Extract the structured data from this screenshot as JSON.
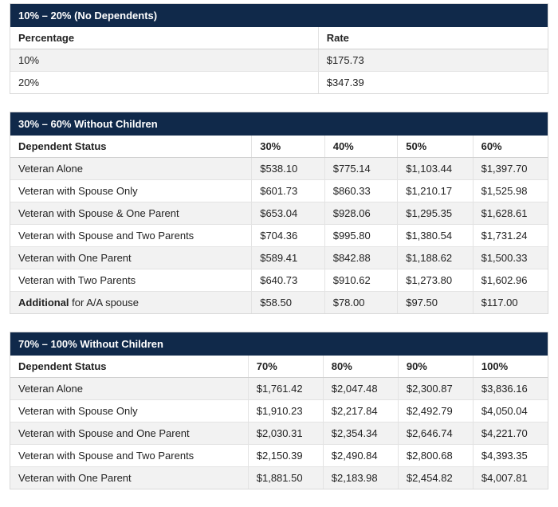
{
  "colors": {
    "header_bg": "#10294a",
    "header_text": "#ffffff",
    "row_alt_bg": "#f2f2f2",
    "border": "#d9d9d9"
  },
  "table1": {
    "title": "10% – 20% (No Dependents)",
    "columns": [
      "Percentage",
      "Rate"
    ],
    "rows": [
      [
        "10%",
        "$175.73"
      ],
      [
        "20%",
        "$347.39"
      ]
    ]
  },
  "table2": {
    "title": "30% – 60% Without Children",
    "columns": [
      "Dependent Status",
      "30%",
      "40%",
      "50%",
      "60%"
    ],
    "rows": [
      [
        "Veteran Alone",
        "$538.10",
        "$775.14",
        "$1,103.44",
        "$1,397.70"
      ],
      [
        "Veteran with Spouse Only",
        "$601.73",
        "$860.33",
        "$1,210.17",
        "$1,525.98"
      ],
      [
        "Veteran with Spouse & One Parent",
        "$653.04",
        "$928.06",
        "$1,295.35",
        "$1,628.61"
      ],
      [
        "Veteran with Spouse and Two Parents",
        "$704.36",
        "$995.80",
        "$1,380.54",
        "$1,731.24"
      ],
      [
        "Veteran with One Parent",
        "$589.41",
        "$842.88",
        "$1,188.62",
        "$1,500.33"
      ],
      [
        "Veteran with Two Parents",
        "$640.73",
        "$910.62",
        "$1,273.80",
        "$1,602.96"
      ]
    ],
    "additional": {
      "label_bold": "Additional",
      "label_rest": " for A/A spouse",
      "values": [
        "$58.50",
        "$78.00",
        "$97.50",
        "$117.00"
      ]
    }
  },
  "table3": {
    "title": "70% – 100% Without Children",
    "columns": [
      "Dependent Status",
      "70%",
      "80%",
      "90%",
      "100%"
    ],
    "rows": [
      [
        "Veteran Alone",
        "$1,761.42",
        "$2,047.48",
        "$2,300.87",
        "$3,836.16"
      ],
      [
        "Veteran with Spouse Only",
        "$1,910.23",
        "$2,217.84",
        "$2,492.79",
        "$4,050.04"
      ],
      [
        "Veteran with Spouse and One Parent",
        "$2,030.31",
        "$2,354.34",
        "$2,646.74",
        "$4,221.70"
      ],
      [
        "Veteran with Spouse and Two Parents",
        "$2,150.39",
        "$2,490.84",
        "$2,800.68",
        "$4,393.35"
      ],
      [
        "Veteran with One Parent",
        "$1,881.50",
        "$2,183.98",
        "$2,454.82",
        "$4,007.81"
      ]
    ]
  }
}
